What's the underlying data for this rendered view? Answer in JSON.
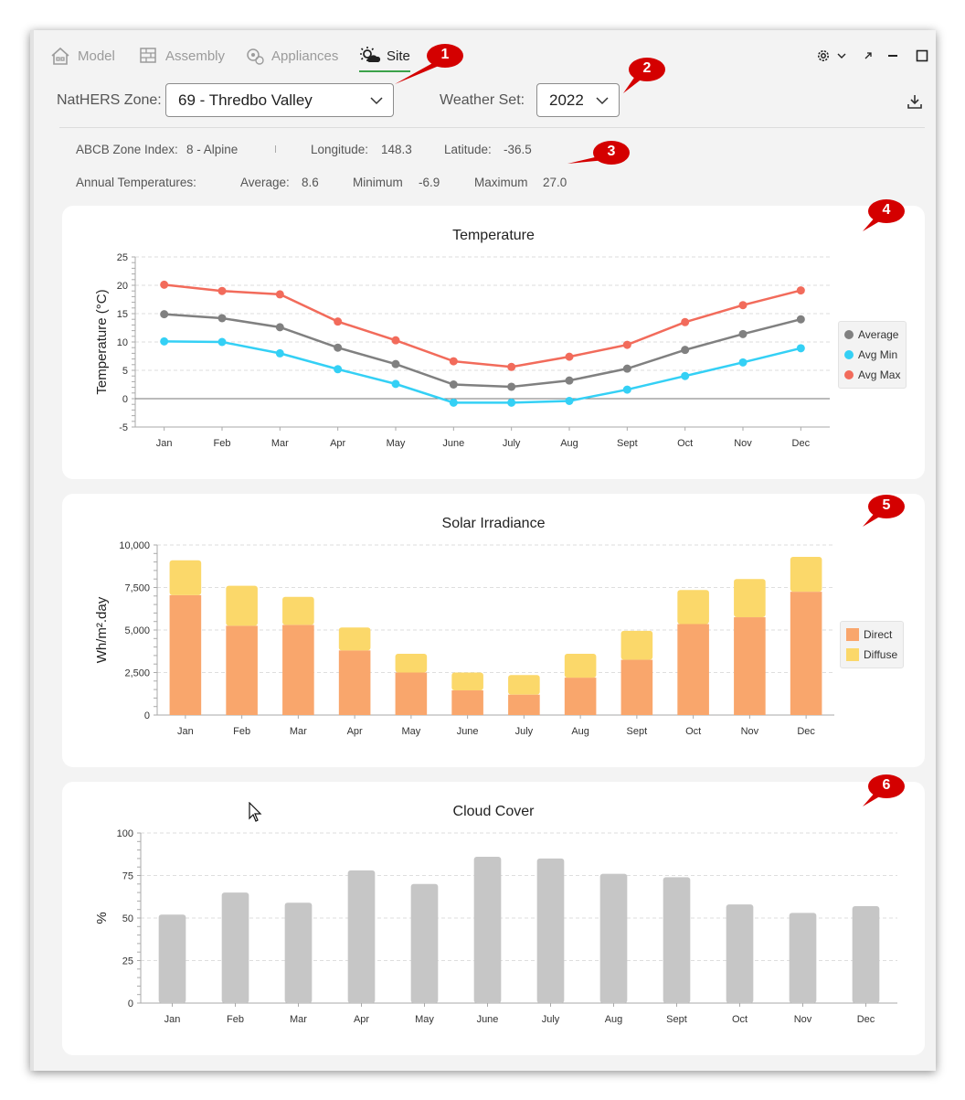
{
  "tabs": [
    {
      "label": "Model",
      "icon": "house-icon",
      "active": false
    },
    {
      "label": "Assembly",
      "icon": "brick-wall-icon",
      "active": false
    },
    {
      "label": "Appliances",
      "icon": "appliance-gear-icon",
      "active": false
    },
    {
      "label": "Site",
      "icon": "sun-cloud-icon",
      "active": true
    }
  ],
  "zone": {
    "label": "NatHERS Zone:",
    "value": "69 - Thredbo Valley"
  },
  "weather": {
    "label": "Weather Set:",
    "value": "2022"
  },
  "info": {
    "abcb_label": "ABCB Zone Index:",
    "abcb_value": "8 - Alpine",
    "longitude_label": "Longitude:",
    "longitude_value": "148.3",
    "latitude_label": "Latitude:",
    "latitude_value": "-36.5",
    "annual_label": "Annual Temperatures:",
    "average_label": "Average:",
    "average_value": "8.6",
    "minimum_label": "Minimum",
    "minimum_value": "-6.9",
    "maximum_label": "Maximum",
    "maximum_value": "27.0"
  },
  "callouts": [
    "1",
    "2",
    "3",
    "4",
    "5",
    "6"
  ],
  "colors": {
    "accent": "#3ca24a",
    "callout": "#d40000",
    "average": "#808080",
    "avg_min": "#34d0f5",
    "avg_max": "#f26b5b",
    "direct": "#f9a66c",
    "diffuse": "#fbd86a",
    "cloud": "#c6c6c6"
  },
  "chart_data": [
    {
      "type": "line",
      "title": "Temperature",
      "ylabel": "Temperature (°C)",
      "xlabel": "",
      "categories": [
        "Jan",
        "Feb",
        "Mar",
        "Apr",
        "May",
        "June",
        "July",
        "Aug",
        "Sept",
        "Oct",
        "Nov",
        "Dec"
      ],
      "ylim": [
        -5,
        25
      ],
      "yticks": [
        "25",
        "20",
        "15",
        "10",
        "5",
        "0",
        "-5"
      ],
      "grid": true,
      "legend": "right",
      "series": [
        {
          "name": "Average",
          "values": [
            14.9,
            14.2,
            12.6,
            9.0,
            6.1,
            2.5,
            2.1,
            3.2,
            5.3,
            8.6,
            11.4,
            14.0
          ]
        },
        {
          "name": "Avg Min",
          "values": [
            10.1,
            10.0,
            8.0,
            5.2,
            2.6,
            -0.7,
            -0.7,
            -0.4,
            1.6,
            4.0,
            6.4,
            8.9
          ]
        },
        {
          "name": "Avg Max",
          "values": [
            20.1,
            19.0,
            18.4,
            13.6,
            10.3,
            6.6,
            5.6,
            7.4,
            9.5,
            13.5,
            16.5,
            19.1
          ]
        }
      ]
    },
    {
      "type": "bar",
      "stacked": true,
      "title": "Solar Irradiance",
      "ylabel": "Wh/m².day",
      "xlabel": "",
      "categories": [
        "Jan",
        "Feb",
        "Mar",
        "Apr",
        "May",
        "June",
        "July",
        "Aug",
        "Sept",
        "Oct",
        "Nov",
        "Dec"
      ],
      "ylim": [
        0,
        10000
      ],
      "yticks": [
        "10,000",
        "7,500",
        "5,000",
        "2,500",
        "0"
      ],
      "grid": true,
      "legend": "right",
      "series": [
        {
          "name": "Direct",
          "values": [
            7050,
            5250,
            5300,
            3800,
            2500,
            1450,
            1200,
            2200,
            3250,
            5350,
            5750,
            7250
          ]
        },
        {
          "name": "Diffuse",
          "values": [
            2050,
            2350,
            1650,
            1350,
            1100,
            1050,
            1150,
            1400,
            1700,
            2000,
            2250,
            2050
          ]
        }
      ]
    },
    {
      "type": "bar",
      "title": "Cloud Cover",
      "ylabel": "%",
      "xlabel": "",
      "categories": [
        "Jan",
        "Feb",
        "Mar",
        "Apr",
        "May",
        "June",
        "July",
        "Aug",
        "Sept",
        "Oct",
        "Nov",
        "Dec"
      ],
      "ylim": [
        0,
        100
      ],
      "yticks": [
        "100",
        "75",
        "50",
        "25",
        "0"
      ],
      "grid": true,
      "series": [
        {
          "values": [
            52,
            65,
            59,
            78,
            70,
            86,
            85,
            76,
            74,
            58,
            53,
            57
          ]
        }
      ]
    }
  ]
}
